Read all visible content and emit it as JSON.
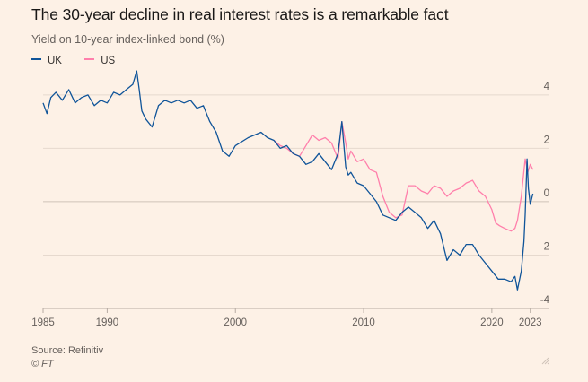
{
  "header": {
    "title": "The 30-year decline in real interest rates is a remarkable fact",
    "subtitle": "Yield on 10-year index-linked bond (%)"
  },
  "footer": {
    "source": "Source: Refinitiv",
    "copyright": "© FT"
  },
  "colors": {
    "UK": "#0f5499",
    "US": "#ff7fab",
    "grid": "#e6d9ce",
    "zero": "#cfc2b8"
  },
  "chart_data": {
    "type": "line",
    "title": "The 30-year decline in real interest rates is a remarkable fact",
    "subtitle": "Yield on 10-year index-linked bond (%)",
    "xlabel": "",
    "ylabel": "",
    "xlim": [
      1985,
      2023.3
    ],
    "ylim": [
      -4,
      4.6
    ],
    "x_ticks": [
      1985,
      1990,
      2000,
      2010,
      2020,
      2023
    ],
    "x_tick_labels": [
      "1985",
      "1990",
      "2000",
      "2010",
      "2020",
      "2023"
    ],
    "y_ticks": [
      4,
      2,
      0,
      -2,
      -4
    ],
    "y_tick_labels": [
      "4",
      "2",
      "0",
      "-2",
      "-4"
    ],
    "grid": true,
    "legend_position": "top-left",
    "series": [
      {
        "name": "UK",
        "x": [
          1985,
          1985.3,
          1985.6,
          1986,
          1986.5,
          1987,
          1987.5,
          1988,
          1988.5,
          1989,
          1989.5,
          1990,
          1990.5,
          1991,
          1991.5,
          1992,
          1992.3,
          1992.5,
          1992.7,
          1993,
          1993.5,
          1994,
          1994.5,
          1995,
          1995.5,
          1996,
          1996.5,
          1997,
          1997.5,
          1998,
          1998.5,
          1999,
          1999.5,
          2000,
          2001,
          2002,
          2002.5,
          2003,
          2003.5,
          2004,
          2004.5,
          2005,
          2005.5,
          2006,
          2006.5,
          2007,
          2007.5,
          2008,
          2008.3,
          2008.6,
          2008.8,
          2009,
          2009.5,
          2010,
          2010.5,
          2011,
          2011.5,
          2012,
          2012.5,
          2013,
          2013.5,
          2014,
          2014.5,
          2015,
          2015.5,
          2016,
          2016.5,
          2017,
          2017.5,
          2018,
          2018.5,
          2019,
          2019.5,
          2020,
          2020.5,
          2021,
          2021.5,
          2021.8,
          2022,
          2022.3,
          2022.5,
          2022.6,
          2022.75,
          2022.85,
          2023,
          2023.2
        ],
        "y": [
          3.7,
          3.3,
          3.9,
          4.1,
          3.8,
          4.2,
          3.7,
          3.9,
          4.0,
          3.6,
          3.8,
          3.7,
          4.1,
          4.0,
          4.2,
          4.4,
          4.9,
          4.2,
          3.4,
          3.1,
          2.8,
          3.6,
          3.8,
          3.7,
          3.8,
          3.7,
          3.8,
          3.5,
          3.6,
          3.0,
          2.6,
          1.9,
          1.7,
          2.1,
          2.4,
          2.6,
          2.4,
          2.3,
          2.0,
          2.1,
          1.8,
          1.7,
          1.4,
          1.5,
          1.8,
          1.5,
          1.2,
          1.8,
          3.0,
          1.3,
          1.0,
          1.1,
          0.7,
          0.6,
          0.3,
          0.0,
          -0.5,
          -0.6,
          -0.7,
          -0.4,
          -0.2,
          -0.4,
          -0.6,
          -1.0,
          -0.7,
          -1.2,
          -2.2,
          -1.8,
          -2.0,
          -1.6,
          -1.6,
          -2.0,
          -2.3,
          -2.6,
          -2.9,
          -2.9,
          -3.0,
          -2.8,
          -3.3,
          -2.6,
          -1.5,
          -0.5,
          1.6,
          0.5,
          -0.1,
          0.3
        ]
      },
      {
        "name": "US",
        "x": [
          2003,
          2003.5,
          2004,
          2004.5,
          2005,
          2005.5,
          2006,
          2006.5,
          2007,
          2007.5,
          2008,
          2008.3,
          2008.6,
          2008.8,
          2009,
          2009.5,
          2010,
          2010.5,
          2011,
          2011.5,
          2012,
          2012.5,
          2013,
          2013.5,
          2014,
          2014.5,
          2015,
          2015.5,
          2016,
          2016.5,
          2017,
          2017.5,
          2018,
          2018.5,
          2019,
          2019.5,
          2020,
          2020.3,
          2020.6,
          2021,
          2021.5,
          2021.8,
          2022,
          2022.3,
          2022.6,
          2022.8,
          2023,
          2023.2
        ],
        "y": [
          2.3,
          2.1,
          2.0,
          1.8,
          1.7,
          2.1,
          2.5,
          2.3,
          2.4,
          2.2,
          1.6,
          3.0,
          2.2,
          1.6,
          1.9,
          1.5,
          1.6,
          1.2,
          1.1,
          0.2,
          -0.4,
          -0.6,
          -0.5,
          0.6,
          0.6,
          0.4,
          0.3,
          0.6,
          0.5,
          0.2,
          0.4,
          0.5,
          0.7,
          0.8,
          0.4,
          0.2,
          -0.3,
          -0.8,
          -0.9,
          -1.0,
          -1.1,
          -1.0,
          -0.7,
          0.2,
          1.6,
          1.1,
          1.4,
          1.2
        ]
      }
    ]
  }
}
